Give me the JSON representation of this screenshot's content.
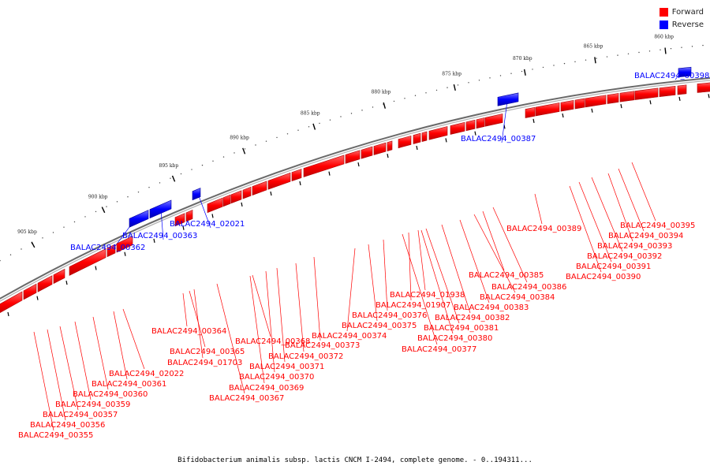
{
  "legend": {
    "items": [
      {
        "label": "Forward",
        "color": "#ff0000"
      },
      {
        "label": "Reverse",
        "color": "#0000ff"
      }
    ]
  },
  "caption": "Bifidobacterium animalis subsp. lactis CNCM I-2494, complete genome. - 0..194311...",
  "colors": {
    "forward": "#ff0000",
    "reverse": "#0000ff",
    "backbone": "#808080"
  },
  "ticks": [
    {
      "label": "860 kbp",
      "kbp": 860
    },
    {
      "label": "865 kbp",
      "kbp": 865
    },
    {
      "label": "870 kbp",
      "kbp": 870
    },
    {
      "label": "875 kbp",
      "kbp": 875
    },
    {
      "label": "880 kbp",
      "kbp": 880
    },
    {
      "label": "885 kbp",
      "kbp": 885
    },
    {
      "label": "890 kbp",
      "kbp": 890
    },
    {
      "label": "895 kbp",
      "kbp": 895
    },
    {
      "label": "900 kbp",
      "kbp": 900
    },
    {
      "label": "905 kbp",
      "kbp": 905
    }
  ],
  "reverse_genes": [
    {
      "label": "BALAC2494_00398"
    },
    {
      "label": "BALAC2494_00387"
    },
    {
      "label": "BALAC2494_02021"
    },
    {
      "label": "BALAC2494_00363"
    },
    {
      "label": "BALAC2494_00362"
    }
  ],
  "forward_genes": [
    {
      "label": "BALAC2494_00395"
    },
    {
      "label": "BALAC2494_00394"
    },
    {
      "label": "BALAC2494_00393"
    },
    {
      "label": "BALAC2494_00392"
    },
    {
      "label": "BALAC2494_00391"
    },
    {
      "label": "BALAC2494_00390"
    },
    {
      "label": "BALAC2494_00389"
    },
    {
      "label": "BALAC2494_00386"
    },
    {
      "label": "BALAC2494_00385"
    },
    {
      "label": "BALAC2494_00384"
    },
    {
      "label": "BALAC2494_00383"
    },
    {
      "label": "BALAC2494_00382"
    },
    {
      "label": "BALAC2494_00381"
    },
    {
      "label": "BALAC2494_00380"
    },
    {
      "label": "BALAC2494_00377"
    },
    {
      "label": "BALAC2494_01938"
    },
    {
      "label": "BALAC2494_01907"
    },
    {
      "label": "BALAC2494_00376"
    },
    {
      "label": "BALAC2494_00375"
    },
    {
      "label": "BALAC2494_00374"
    },
    {
      "label": "BALAC2494_00373"
    },
    {
      "label": "BALAC2494_00372"
    },
    {
      "label": "BALAC2494_00371"
    },
    {
      "label": "BALAC2494_00370"
    },
    {
      "label": "BALAC2494_00369"
    },
    {
      "label": "BALAC2494_00368"
    },
    {
      "label": "BALAC2494_00367"
    },
    {
      "label": "BALAC2494_00364"
    },
    {
      "label": "BALAC2494_00365"
    },
    {
      "label": "BALAC2494_01703"
    },
    {
      "label": "BALAC2494_02022"
    },
    {
      "label": "BALAC2494_00361"
    },
    {
      "label": "BALAC2494_00360"
    },
    {
      "label": "BALAC2494_00359"
    },
    {
      "label": "BALAC2494_00357"
    },
    {
      "label": "BALAC2494_00356"
    },
    {
      "label": "BALAC2494_00355"
    }
  ]
}
